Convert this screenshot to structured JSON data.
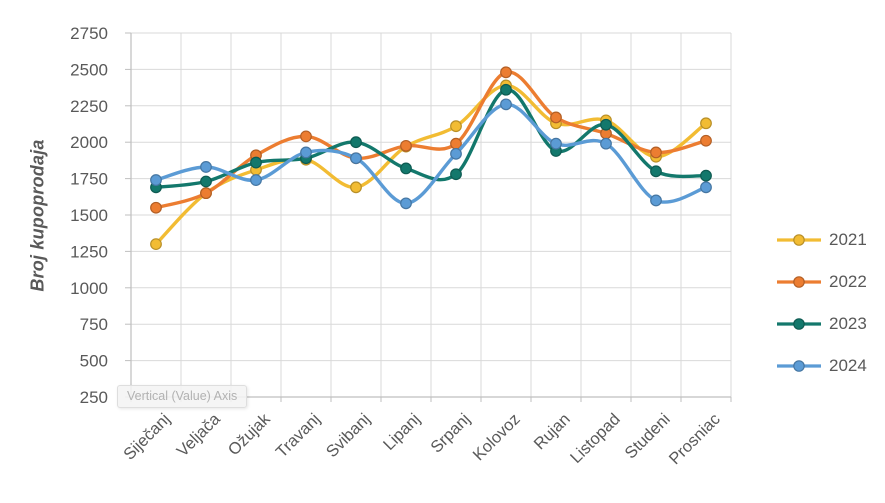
{
  "chart_data": {
    "type": "line",
    "title": "",
    "xlabel": "",
    "ylabel": "Broj kupoprodaja",
    "ylim": [
      250,
      2750
    ],
    "ytick_step": 250,
    "yticks": [
      2750,
      2500,
      2250,
      2000,
      1750,
      1500,
      1250,
      1000,
      750,
      500,
      250
    ],
    "grid": true,
    "smooth": true,
    "legend_position": "right",
    "categories": [
      "Siječanj",
      "Veljača",
      "Ožujak",
      "Travanj",
      "Svibanj",
      "Lipanj",
      "Srpanj",
      "Kolovoz",
      "Rujan",
      "Listopad",
      "Studeni",
      "Prosniac"
    ],
    "series": [
      {
        "name": "2021",
        "color": "#F2BC33",
        "values": [
          1300,
          1650,
          1810,
          1880,
          1690,
          1970,
          2110,
          2390,
          2130,
          2150,
          1900,
          2130
        ]
      },
      {
        "name": "2022",
        "color": "#EC7D31",
        "values": [
          1550,
          1650,
          1910,
          2040,
          1890,
          1975,
          1990,
          2480,
          2170,
          2060,
          1930,
          2010
        ]
      },
      {
        "name": "2023",
        "color": "#13786C",
        "values": [
          1690,
          1730,
          1860,
          1890,
          2000,
          1820,
          1780,
          2360,
          1940,
          2120,
          1800,
          1770
        ]
      },
      {
        "name": "2024",
        "color": "#5B9BD5",
        "values": [
          1740,
          1830,
          1740,
          1930,
          1890,
          1580,
          1920,
          2260,
          1990,
          1990,
          1600,
          1690
        ]
      }
    ]
  },
  "axis_tooltip": {
    "text": "Vertical (Value) Axis"
  },
  "colors": {
    "background": "#FFFFFF",
    "gridline": "#D9D9D9",
    "axis_line": "#BFBFBF",
    "tick_text": "#595959",
    "axis_title_text": "#595959",
    "legend_text": "#595959",
    "tooltip_bg": "#F4F4F4",
    "tooltip_border": "#DEDEDE",
    "tooltip_text": "#B2B2B2"
  }
}
